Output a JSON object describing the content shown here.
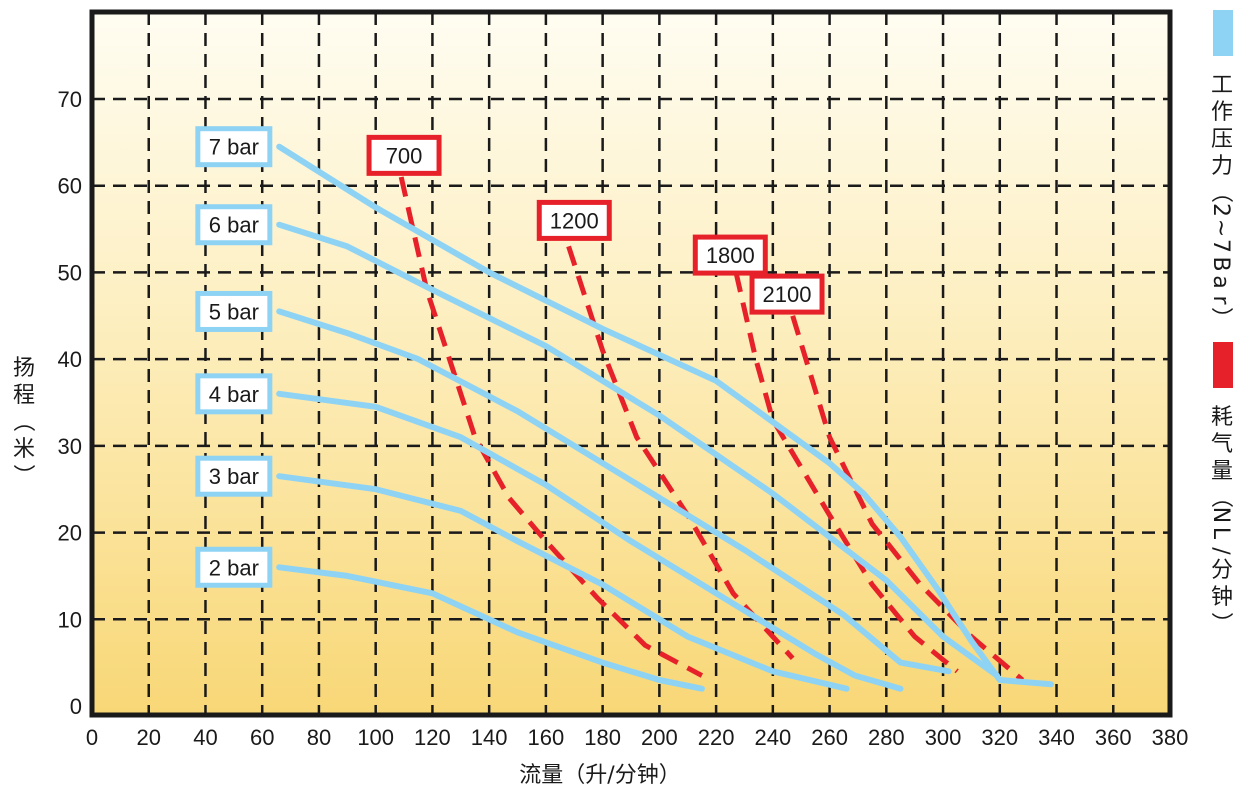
{
  "chart_data": {
    "type": "line",
    "xlabel": "流量（升/分钟）",
    "ylabel": "扬程（米）",
    "xlim": [
      0,
      380
    ],
    "ylim": [
      0,
      80
    ],
    "x_ticks": [
      "0",
      "20",
      "40",
      "60",
      "80",
      "100",
      "120",
      "140",
      "160",
      "180",
      "200",
      "220",
      "240",
      "260",
      "280",
      "300",
      "320",
      "340",
      "360",
      "380"
    ],
    "y_ticks": [
      "0",
      "10",
      "20",
      "30",
      "40",
      "50",
      "60",
      "70"
    ],
    "grid": true,
    "legend": {
      "position": "right",
      "items": [
        {
          "label": "工作压力（2~7Bar）",
          "color": "#8fd3f4"
        },
        {
          "label": "耗气量（NL/分钟）",
          "color": "#e62129"
        }
      ]
    },
    "pressure_series": [
      {
        "label": "7 bar",
        "label_at": [
          50,
          64.5
        ],
        "points": [
          [
            66,
            64.5
          ],
          [
            100,
            57.5
          ],
          [
            140,
            50
          ],
          [
            180,
            43.5
          ],
          [
            220,
            37.5
          ],
          [
            260,
            28
          ],
          [
            272,
            24.5
          ],
          [
            285,
            19.5
          ],
          [
            298,
            13.5
          ],
          [
            310,
            7.5
          ],
          [
            320,
            3
          ],
          [
            338,
            2.5
          ]
        ]
      },
      {
        "label": "6 bar",
        "label_at": [
          50,
          55.5
        ],
        "points": [
          [
            66,
            55.5
          ],
          [
            90,
            53
          ],
          [
            120,
            48
          ],
          [
            160,
            41.5
          ],
          [
            200,
            33.5
          ],
          [
            240,
            24.5
          ],
          [
            280,
            14.5
          ],
          [
            300,
            8
          ],
          [
            319,
            3.5
          ]
        ]
      },
      {
        "label": "5 bar",
        "label_at": [
          50,
          45.5
        ],
        "points": [
          [
            66,
            45.5
          ],
          [
            90,
            43
          ],
          [
            115,
            40
          ],
          [
            150,
            34
          ],
          [
            190,
            26
          ],
          [
            230,
            18
          ],
          [
            265,
            10.5
          ],
          [
            285,
            5
          ],
          [
            302,
            4
          ]
        ]
      },
      {
        "label": "4 bar",
        "label_at": [
          50,
          36
        ],
        "points": [
          [
            66,
            36
          ],
          [
            100,
            34.5
          ],
          [
            130,
            31
          ],
          [
            160,
            25.5
          ],
          [
            190,
            19
          ],
          [
            230,
            11
          ],
          [
            255,
            6
          ],
          [
            269,
            3.5
          ],
          [
            285,
            2
          ]
        ]
      },
      {
        "label": "3 bar",
        "label_at": [
          50,
          26.5
        ],
        "points": [
          [
            66,
            26.5
          ],
          [
            100,
            25
          ],
          [
            130,
            22.5
          ],
          [
            150,
            19
          ],
          [
            180,
            14
          ],
          [
            210,
            8
          ],
          [
            240,
            4
          ],
          [
            266,
            2
          ]
        ]
      },
      {
        "label": "2 bar",
        "label_at": [
          50,
          16
        ],
        "points": [
          [
            66,
            16
          ],
          [
            90,
            15
          ],
          [
            120,
            13
          ],
          [
            150,
            8.5
          ],
          [
            180,
            5
          ],
          [
            200,
            3
          ],
          [
            215,
            2
          ]
        ]
      }
    ],
    "air_series": [
      {
        "label": "700",
        "label_at": [
          110,
          63.5
        ],
        "points": [
          [
            109,
            61
          ],
          [
            118,
            48
          ],
          [
            127,
            39
          ],
          [
            135,
            31
          ],
          [
            147,
            24
          ],
          [
            160,
            19
          ],
          [
            178,
            12.5
          ],
          [
            195,
            7
          ],
          [
            215,
            3.5
          ]
        ]
      },
      {
        "label": "1200",
        "label_at": [
          170,
          56
        ],
        "points": [
          [
            168,
            53
          ],
          [
            180,
            41
          ],
          [
            192,
            31
          ],
          [
            210,
            22
          ],
          [
            226,
            13
          ],
          [
            247,
            5.5
          ]
        ]
      },
      {
        "label": "1800",
        "label_at": [
          225,
          52
        ],
        "points": [
          [
            227,
            50
          ],
          [
            234,
            40
          ],
          [
            240,
            33
          ],
          [
            260,
            22
          ],
          [
            275,
            14
          ],
          [
            290,
            8
          ],
          [
            305,
            4
          ]
        ]
      },
      {
        "label": "2100",
        "label_at": [
          245,
          47.5
        ],
        "points": [
          [
            247,
            45
          ],
          [
            260,
            31
          ],
          [
            275,
            21
          ],
          [
            292,
            14
          ],
          [
            310,
            8
          ],
          [
            328,
            3
          ]
        ]
      }
    ],
    "colors": {
      "pressure": "#8fd3f4",
      "air": "#e62129",
      "grid": "#1a1a1a",
      "bg_top": "#fffdf2",
      "bg_bottom": "#f8d776"
    }
  }
}
